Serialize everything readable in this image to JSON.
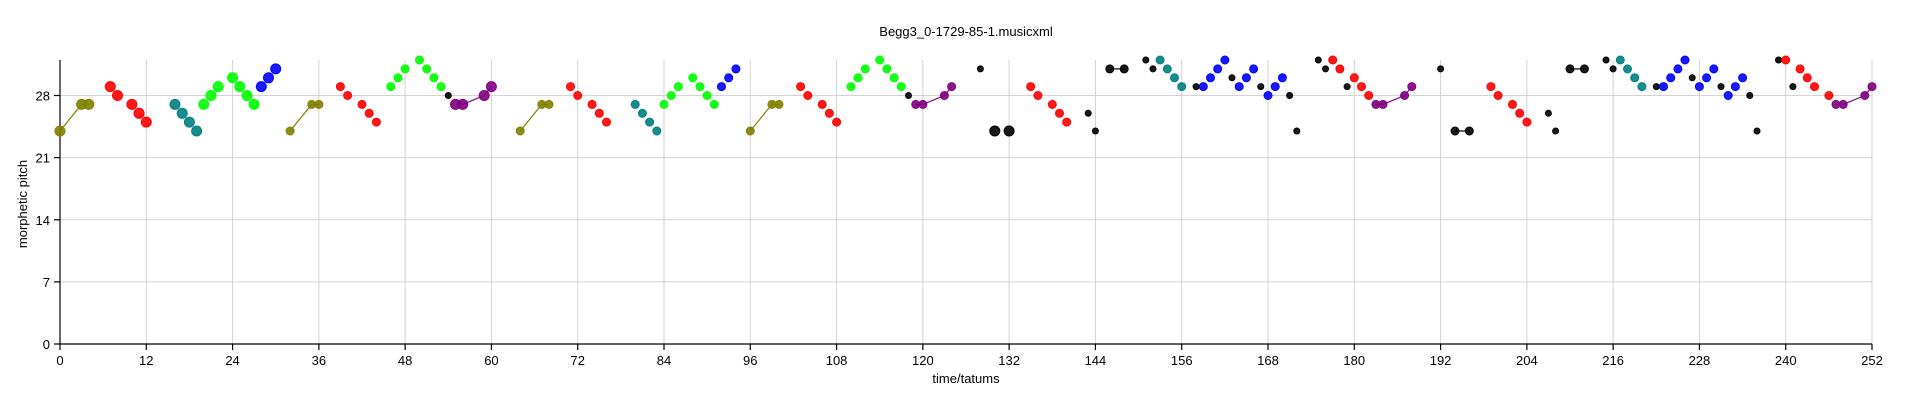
{
  "chart_data": {
    "type": "scatter",
    "title": "Begg3_0-1729-85-1.musicxml",
    "xlabel": "time/tatums",
    "ylabel": "morphetic pitch",
    "xlim": [
      0,
      252
    ],
    "ylim": [
      0,
      32
    ],
    "xticks": [
      0,
      12,
      24,
      36,
      48,
      60,
      72,
      84,
      96,
      108,
      120,
      132,
      144,
      156,
      168,
      180,
      192,
      204,
      216,
      228,
      240,
      252
    ],
    "yticks": [
      0,
      7,
      14,
      21,
      28
    ],
    "grid": true,
    "colors": {
      "olive": "#808000",
      "red": "#ff0000",
      "teal": "#008080",
      "green": "#00ff00",
      "blue": "#0000ff",
      "purple": "#800080",
      "black": "#000000"
    },
    "series": [
      {
        "color": "olive",
        "connected": true,
        "radius": 5,
        "points": [
          [
            0,
            24
          ],
          [
            3,
            27
          ],
          [
            4,
            27
          ]
        ]
      },
      {
        "color": "red",
        "connected": false,
        "radius": 5,
        "points": [
          [
            7,
            29
          ],
          [
            8,
            28
          ],
          [
            10,
            27
          ],
          [
            11,
            26
          ],
          [
            12,
            25
          ]
        ]
      },
      {
        "color": "teal",
        "connected": false,
        "radius": 5,
        "points": [
          [
            16,
            27
          ],
          [
            17,
            26
          ],
          [
            18,
            25
          ],
          [
            19,
            24
          ]
        ]
      },
      {
        "color": "green",
        "connected": false,
        "radius": 5,
        "points": [
          [
            20,
            27
          ],
          [
            21,
            28
          ],
          [
            22,
            29
          ],
          [
            24,
            30
          ],
          [
            25,
            29
          ],
          [
            26,
            28
          ],
          [
            27,
            27
          ]
        ]
      },
      {
        "color": "blue",
        "connected": false,
        "radius": 5,
        "points": [
          [
            28,
            29
          ],
          [
            29,
            30
          ],
          [
            30,
            31
          ]
        ]
      },
      {
        "color": "olive",
        "connected": true,
        "radius": 4,
        "points": [
          [
            32,
            24
          ],
          [
            35,
            27
          ],
          [
            36,
            27
          ]
        ]
      },
      {
        "color": "red",
        "connected": false,
        "radius": 4,
        "points": [
          [
            39,
            29
          ],
          [
            40,
            28
          ],
          [
            42,
            27
          ],
          [
            43,
            26
          ],
          [
            44,
            25
          ]
        ]
      },
      {
        "color": "green",
        "connected": false,
        "radius": 4,
        "points": [
          [
            46,
            29
          ],
          [
            47,
            30
          ],
          [
            48,
            31
          ],
          [
            50,
            32
          ],
          [
            51,
            31
          ],
          [
            52,
            30
          ],
          [
            53,
            29
          ]
        ]
      },
      {
        "color": "black",
        "connected": false,
        "radius": 3,
        "points": [
          [
            54,
            28
          ]
        ]
      },
      {
        "color": "purple",
        "connected": true,
        "radius": 5,
        "points": [
          [
            55,
            27
          ],
          [
            56,
            27
          ],
          [
            59,
            28
          ],
          [
            60,
            29
          ]
        ]
      },
      {
        "color": "olive",
        "connected": true,
        "radius": 4,
        "points": [
          [
            64,
            24
          ],
          [
            67,
            27
          ],
          [
            68,
            27
          ]
        ]
      },
      {
        "color": "red",
        "connected": false,
        "radius": 4,
        "points": [
          [
            71,
            29
          ],
          [
            72,
            28
          ],
          [
            74,
            27
          ],
          [
            75,
            26
          ],
          [
            76,
            25
          ]
        ]
      },
      {
        "color": "teal",
        "connected": false,
        "radius": 4,
        "points": [
          [
            80,
            27
          ],
          [
            81,
            26
          ],
          [
            82,
            25
          ],
          [
            83,
            24
          ]
        ]
      },
      {
        "color": "green",
        "connected": false,
        "radius": 4,
        "points": [
          [
            84,
            27
          ],
          [
            85,
            28
          ],
          [
            86,
            29
          ],
          [
            88,
            30
          ],
          [
            89,
            29
          ],
          [
            90,
            28
          ],
          [
            91,
            27
          ]
        ]
      },
      {
        "color": "blue",
        "connected": false,
        "radius": 4,
        "points": [
          [
            92,
            29
          ],
          [
            93,
            30
          ],
          [
            94,
            31
          ]
        ]
      },
      {
        "color": "olive",
        "connected": true,
        "radius": 4,
        "points": [
          [
            96,
            24
          ],
          [
            99,
            27
          ],
          [
            100,
            27
          ]
        ]
      },
      {
        "color": "red",
        "connected": false,
        "radius": 4,
        "points": [
          [
            103,
            29
          ],
          [
            104,
            28
          ],
          [
            106,
            27
          ],
          [
            107,
            26
          ],
          [
            108,
            25
          ]
        ]
      },
      {
        "color": "green",
        "connected": false,
        "radius": 4,
        "points": [
          [
            110,
            29
          ],
          [
            111,
            30
          ],
          [
            112,
            31
          ],
          [
            114,
            32
          ],
          [
            115,
            31
          ],
          [
            116,
            30
          ],
          [
            117,
            29
          ]
        ]
      },
      {
        "color": "black",
        "connected": false,
        "radius": 3,
        "points": [
          [
            118,
            28
          ]
        ]
      },
      {
        "color": "purple",
        "connected": true,
        "radius": 4,
        "points": [
          [
            119,
            27
          ],
          [
            120,
            27
          ],
          [
            123,
            28
          ],
          [
            124,
            29
          ]
        ]
      },
      {
        "color": "black",
        "connected": false,
        "radius": 3,
        "points": [
          [
            128,
            31
          ]
        ]
      },
      {
        "color": "black",
        "connected": false,
        "radius": 5,
        "points": [
          [
            130,
            24
          ],
          [
            132,
            24
          ]
        ]
      },
      {
        "color": "red",
        "connected": false,
        "radius": 4,
        "points": [
          [
            135,
            29
          ],
          [
            136,
            28
          ],
          [
            138,
            27
          ],
          [
            139,
            26
          ],
          [
            140,
            25
          ]
        ]
      },
      {
        "color": "black",
        "connected": false,
        "radius": 3,
        "points": [
          [
            143,
            26
          ],
          [
            144,
            24
          ]
        ]
      },
      {
        "color": "black",
        "connected": true,
        "radius": 4,
        "points": [
          [
            146,
            31
          ],
          [
            148,
            31
          ]
        ]
      },
      {
        "color": "black",
        "connected": false,
        "radius": 3,
        "points": [
          [
            151,
            32
          ],
          [
            152,
            31
          ]
        ]
      },
      {
        "color": "teal",
        "connected": false,
        "radius": 4,
        "points": [
          [
            153,
            32
          ],
          [
            154,
            31
          ],
          [
            155,
            30
          ],
          [
            156,
            29
          ]
        ]
      },
      {
        "color": "black",
        "connected": false,
        "radius": 3,
        "points": [
          [
            158,
            29
          ]
        ]
      },
      {
        "color": "blue",
        "connected": false,
        "radius": 4,
        "points": [
          [
            159,
            29
          ],
          [
            160,
            30
          ],
          [
            161,
            31
          ],
          [
            162,
            32
          ]
        ]
      },
      {
        "color": "black",
        "connected": false,
        "radius": 3,
        "points": [
          [
            163,
            30
          ]
        ]
      },
      {
        "color": "blue",
        "connected": false,
        "radius": 4,
        "points": [
          [
            164,
            29
          ],
          [
            165,
            30
          ],
          [
            166,
            31
          ]
        ]
      },
      {
        "color": "black",
        "connected": false,
        "radius": 3,
        "points": [
          [
            167,
            29
          ]
        ]
      },
      {
        "color": "blue",
        "connected": false,
        "radius": 4,
        "points": [
          [
            168,
            28
          ],
          [
            169,
            29
          ],
          [
            170,
            30
          ]
        ]
      },
      {
        "color": "black",
        "connected": false,
        "radius": 3,
        "points": [
          [
            171,
            28
          ],
          [
            172,
            24
          ]
        ]
      },
      {
        "color": "black",
        "connected": false,
        "radius": 3,
        "points": [
          [
            175,
            32
          ],
          [
            176,
            31
          ]
        ]
      },
      {
        "color": "red",
        "connected": false,
        "radius": 4,
        "points": [
          [
            177,
            32
          ],
          [
            178,
            31
          ],
          [
            180,
            30
          ],
          [
            181,
            29
          ],
          [
            182,
            28
          ]
        ]
      },
      {
        "color": "black",
        "connected": false,
        "radius": 3,
        "points": [
          [
            179,
            29
          ]
        ]
      },
      {
        "color": "purple",
        "connected": true,
        "radius": 4,
        "points": [
          [
            183,
            27
          ],
          [
            184,
            27
          ],
          [
            187,
            28
          ],
          [
            188,
            29
          ]
        ]
      },
      {
        "color": "black",
        "connected": false,
        "radius": 3,
        "points": [
          [
            192,
            31
          ]
        ]
      },
      {
        "color": "black",
        "connected": true,
        "radius": 4,
        "points": [
          [
            194,
            24
          ],
          [
            196,
            24
          ]
        ]
      },
      {
        "color": "red",
        "connected": false,
        "radius": 4,
        "points": [
          [
            199,
            29
          ],
          [
            200,
            28
          ],
          [
            202,
            27
          ],
          [
            203,
            26
          ],
          [
            204,
            25
          ]
        ]
      },
      {
        "color": "black",
        "connected": false,
        "radius": 3,
        "points": [
          [
            207,
            26
          ],
          [
            208,
            24
          ]
        ]
      },
      {
        "color": "black",
        "connected": true,
        "radius": 4,
        "points": [
          [
            210,
            31
          ],
          [
            212,
            31
          ]
        ]
      },
      {
        "color": "black",
        "connected": false,
        "radius": 3,
        "points": [
          [
            215,
            32
          ],
          [
            216,
            31
          ]
        ]
      },
      {
        "color": "teal",
        "connected": false,
        "radius": 4,
        "points": [
          [
            217,
            32
          ],
          [
            218,
            31
          ],
          [
            219,
            30
          ],
          [
            220,
            29
          ]
        ]
      },
      {
        "color": "black",
        "connected": false,
        "radius": 3,
        "points": [
          [
            222,
            29
          ]
        ]
      },
      {
        "color": "blue",
        "connected": false,
        "radius": 4,
        "points": [
          [
            223,
            29
          ],
          [
            224,
            30
          ],
          [
            225,
            31
          ],
          [
            226,
            32
          ]
        ]
      },
      {
        "color": "black",
        "connected": false,
        "radius": 3,
        "points": [
          [
            227,
            30
          ]
        ]
      },
      {
        "color": "blue",
        "connected": false,
        "radius": 4,
        "points": [
          [
            228,
            29
          ],
          [
            229,
            30
          ],
          [
            230,
            31
          ]
        ]
      },
      {
        "color": "black",
        "connected": false,
        "radius": 3,
        "points": [
          [
            231,
            29
          ]
        ]
      },
      {
        "color": "blue",
        "connected": false,
        "radius": 4,
        "points": [
          [
            232,
            28
          ],
          [
            233,
            29
          ],
          [
            234,
            30
          ]
        ]
      },
      {
        "color": "black",
        "connected": false,
        "radius": 3,
        "points": [
          [
            235,
            28
          ],
          [
            236,
            24
          ]
        ]
      },
      {
        "color": "black",
        "connected": false,
        "radius": 3,
        "points": [
          [
            239,
            32
          ],
          [
            241,
            29
          ]
        ]
      },
      {
        "color": "red",
        "connected": false,
        "radius": 4,
        "points": [
          [
            240,
            32
          ],
          [
            242,
            31
          ],
          [
            243,
            30
          ],
          [
            244,
            29
          ],
          [
            246,
            28
          ]
        ]
      },
      {
        "color": "purple",
        "connected": true,
        "radius": 4,
        "points": [
          [
            247,
            27
          ],
          [
            248,
            27
          ],
          [
            251,
            28
          ],
          [
            252,
            29
          ]
        ]
      }
    ]
  }
}
